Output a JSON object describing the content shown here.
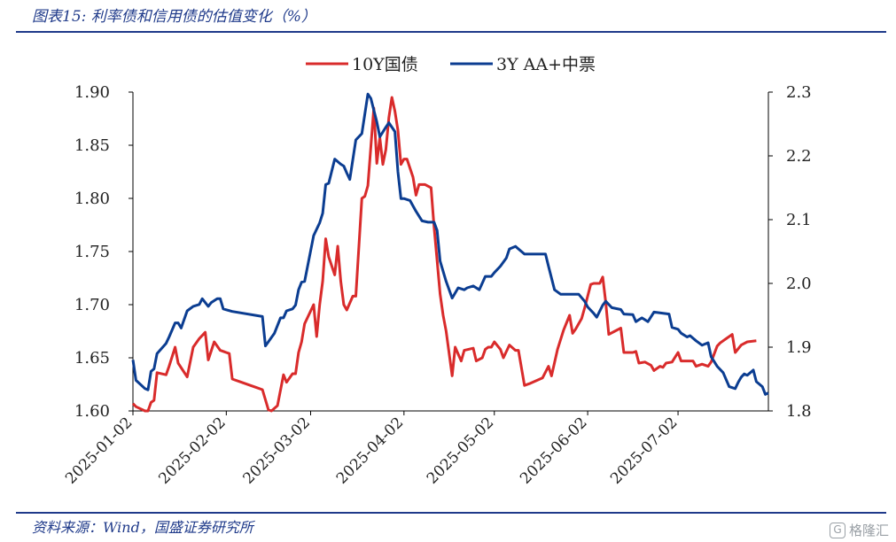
{
  "figure": {
    "title": "图表15: 利率债和信用债的估值变化（%）",
    "source": "资料来源：Wind，国盛证券研究所",
    "watermark": "格隆汇"
  },
  "chart_data": {
    "type": "line",
    "legend_position": "top-center",
    "grid": false,
    "x_ticks": [
      "2025-01-02",
      "2025-02-02",
      "2025-03-02",
      "2025-04-02",
      "2025-05-02",
      "2025-06-02",
      "2025-07-02"
    ],
    "xlim": [
      "2025-01-02",
      "2025-07-28"
    ],
    "y_left": {
      "lim": [
        1.6,
        1.9
      ],
      "ticks": [
        "1.60",
        "1.65",
        "1.70",
        "1.75",
        "1.80",
        "1.85",
        "1.90"
      ]
    },
    "y_right": {
      "lim": [
        1.8,
        2.3
      ],
      "ticks": [
        "1.8",
        "1.9",
        "2.0",
        "2.1",
        "2.2",
        "2.3"
      ]
    },
    "colors": {
      "series1": "#d92b2b",
      "series2": "#0b3d91"
    },
    "series": [
      {
        "name": "10Y国债",
        "axis": "left",
        "points": [
          [
            "2025-01-02",
            1.607
          ],
          [
            "2025-01-03",
            1.604
          ],
          [
            "2025-01-06",
            1.6
          ],
          [
            "2025-01-07",
            1.6
          ],
          [
            "2025-01-08",
            1.608
          ],
          [
            "2025-01-09",
            1.61
          ],
          [
            "2025-01-10",
            1.636
          ],
          [
            "2025-01-13",
            1.634
          ],
          [
            "2025-01-14",
            1.642
          ],
          [
            "2025-01-16",
            1.66
          ],
          [
            "2025-01-17",
            1.645
          ],
          [
            "2025-01-20",
            1.632
          ],
          [
            "2025-01-22",
            1.66
          ],
          [
            "2025-01-24",
            1.668
          ],
          [
            "2025-01-26",
            1.674
          ],
          [
            "2025-01-27",
            1.648
          ],
          [
            "2025-01-29",
            1.665
          ],
          [
            "2025-01-31",
            1.657
          ],
          [
            "2025-02-03",
            1.654
          ],
          [
            "2025-02-04",
            1.63
          ],
          [
            "2025-02-07",
            1.627
          ],
          [
            "2025-02-10",
            1.624
          ],
          [
            "2025-02-12",
            1.622
          ],
          [
            "2025-02-14",
            1.62
          ],
          [
            "2025-02-16",
            1.601
          ],
          [
            "2025-02-17",
            1.6
          ],
          [
            "2025-02-19",
            1.605
          ],
          [
            "2025-02-21",
            1.634
          ],
          [
            "2025-02-22",
            1.627
          ],
          [
            "2025-02-24",
            1.635
          ],
          [
            "2025-02-25",
            1.635
          ],
          [
            "2025-02-26",
            1.655
          ],
          [
            "2025-02-27",
            1.665
          ],
          [
            "2025-02-28",
            1.682
          ],
          [
            "2025-03-03",
            1.7
          ],
          [
            "2025-03-04",
            1.67
          ],
          [
            "2025-03-05",
            1.7
          ],
          [
            "2025-03-06",
            1.722
          ],
          [
            "2025-03-07",
            1.762
          ],
          [
            "2025-03-08",
            1.745
          ],
          [
            "2025-03-10",
            1.728
          ],
          [
            "2025-03-11",
            1.755
          ],
          [
            "2025-03-12",
            1.722
          ],
          [
            "2025-03-13",
            1.7
          ],
          [
            "2025-03-14",
            1.695
          ],
          [
            "2025-03-16",
            1.708
          ],
          [
            "2025-03-17",
            1.708
          ],
          [
            "2025-03-19",
            1.8
          ],
          [
            "2025-03-20",
            1.802
          ],
          [
            "2025-03-21",
            1.812
          ],
          [
            "2025-03-23",
            1.885
          ],
          [
            "2025-03-24",
            1.833
          ],
          [
            "2025-03-25",
            1.857
          ],
          [
            "2025-03-26",
            1.832
          ],
          [
            "2025-03-27",
            1.846
          ],
          [
            "2025-03-28",
            1.876
          ],
          [
            "2025-03-29",
            1.895
          ],
          [
            "2025-03-30",
            1.882
          ],
          [
            "2025-03-31",
            1.864
          ],
          [
            "2025-04-01",
            1.832
          ],
          [
            "2025-04-02",
            1.837
          ],
          [
            "2025-04-03",
            1.837
          ],
          [
            "2025-04-05",
            1.82
          ],
          [
            "2025-04-06",
            1.803
          ],
          [
            "2025-04-07",
            1.813
          ],
          [
            "2025-04-09",
            1.813
          ],
          [
            "2025-04-11",
            1.81
          ],
          [
            "2025-04-12",
            1.773
          ],
          [
            "2025-04-14",
            1.71
          ],
          [
            "2025-04-15",
            1.69
          ],
          [
            "2025-04-16",
            1.675
          ],
          [
            "2025-04-18",
            1.633
          ],
          [
            "2025-04-19",
            1.66
          ],
          [
            "2025-04-21",
            1.647
          ],
          [
            "2025-04-22",
            1.657
          ],
          [
            "2025-04-25",
            1.659
          ],
          [
            "2025-04-26",
            1.647
          ],
          [
            "2025-04-28",
            1.65
          ],
          [
            "2025-04-29",
            1.658
          ],
          [
            "2025-04-30",
            1.66
          ],
          [
            "2025-05-01",
            1.66
          ],
          [
            "2025-05-02",
            1.665
          ],
          [
            "2025-05-04",
            1.658
          ],
          [
            "2025-05-05",
            1.65
          ],
          [
            "2025-05-07",
            1.662
          ],
          [
            "2025-05-09",
            1.657
          ],
          [
            "2025-05-10",
            1.657
          ],
          [
            "2025-05-12",
            1.624
          ],
          [
            "2025-05-14",
            1.626
          ],
          [
            "2025-05-18",
            1.631
          ],
          [
            "2025-05-20",
            1.642
          ],
          [
            "2025-05-21",
            1.633
          ],
          [
            "2025-05-23",
            1.658
          ],
          [
            "2025-05-25",
            1.676
          ],
          [
            "2025-05-27",
            1.69
          ],
          [
            "2025-05-28",
            1.673
          ],
          [
            "2025-05-29",
            1.677
          ],
          [
            "2025-05-31",
            1.687
          ],
          [
            "2025-06-01",
            1.697
          ],
          [
            "2025-06-03",
            1.719
          ],
          [
            "2025-06-04",
            1.72
          ],
          [
            "2025-06-06",
            1.72
          ],
          [
            "2025-06-07",
            1.726
          ],
          [
            "2025-06-08",
            1.702
          ],
          [
            "2025-06-09",
            1.672
          ],
          [
            "2025-06-11",
            1.675
          ],
          [
            "2025-06-13",
            1.678
          ],
          [
            "2025-06-14",
            1.655
          ],
          [
            "2025-06-17",
            1.655
          ],
          [
            "2025-06-18",
            1.656
          ],
          [
            "2025-06-19",
            1.645
          ],
          [
            "2025-06-21",
            1.646
          ],
          [
            "2025-06-23",
            1.643
          ],
          [
            "2025-06-24",
            1.638
          ],
          [
            "2025-06-26",
            1.642
          ],
          [
            "2025-06-27",
            1.641
          ],
          [
            "2025-06-28",
            1.645
          ],
          [
            "2025-06-30",
            1.646
          ],
          [
            "2025-07-02",
            1.655
          ],
          [
            "2025-07-03",
            1.647
          ],
          [
            "2025-07-05",
            1.647
          ],
          [
            "2025-07-07",
            1.647
          ],
          [
            "2025-07-08",
            1.642
          ],
          [
            "2025-07-10",
            1.644
          ],
          [
            "2025-07-12",
            1.642
          ],
          [
            "2025-07-13",
            1.646
          ],
          [
            "2025-07-15",
            1.661
          ],
          [
            "2025-07-16",
            1.664
          ],
          [
            "2025-07-18",
            1.668
          ],
          [
            "2025-07-20",
            1.672
          ],
          [
            "2025-07-21",
            1.655
          ],
          [
            "2025-07-23",
            1.662
          ],
          [
            "2025-07-25",
            1.665
          ],
          [
            "2025-07-28",
            1.666
          ]
        ]
      },
      {
        "name": "3Y AA+中票",
        "axis": "right",
        "points": [
          [
            "2025-01-02",
            1.88
          ],
          [
            "2025-01-03",
            1.848
          ],
          [
            "2025-01-06",
            1.835
          ],
          [
            "2025-01-07",
            1.833
          ],
          [
            "2025-01-08",
            1.862
          ],
          [
            "2025-01-09",
            1.866
          ],
          [
            "2025-01-10",
            1.89
          ],
          [
            "2025-01-13",
            1.906
          ],
          [
            "2025-01-14",
            1.916
          ],
          [
            "2025-01-16",
            1.938
          ],
          [
            "2025-01-17",
            1.938
          ],
          [
            "2025-01-18",
            1.93
          ],
          [
            "2025-01-20",
            1.957
          ],
          [
            "2025-01-22",
            1.964
          ],
          [
            "2025-01-24",
            1.967
          ],
          [
            "2025-01-25",
            1.976
          ],
          [
            "2025-01-27",
            1.964
          ],
          [
            "2025-01-28",
            1.97
          ],
          [
            "2025-01-30",
            1.976
          ],
          [
            "2025-01-31",
            1.976
          ],
          [
            "2025-02-01",
            1.96
          ],
          [
            "2025-02-04",
            1.956
          ],
          [
            "2025-02-14",
            1.948
          ],
          [
            "2025-02-15",
            1.902
          ],
          [
            "2025-02-18",
            1.922
          ],
          [
            "2025-02-20",
            1.946
          ],
          [
            "2025-02-21",
            1.946
          ],
          [
            "2025-02-22",
            1.957
          ],
          [
            "2025-02-24",
            1.96
          ],
          [
            "2025-02-25",
            1.966
          ],
          [
            "2025-02-26",
            1.99
          ],
          [
            "2025-02-27",
            2.002
          ],
          [
            "2025-02-28",
            2.003
          ],
          [
            "2025-03-03",
            2.075
          ],
          [
            "2025-03-05",
            2.095
          ],
          [
            "2025-03-06",
            2.11
          ],
          [
            "2025-03-07",
            2.155
          ],
          [
            "2025-03-08",
            2.157
          ],
          [
            "2025-03-10",
            2.195
          ],
          [
            "2025-03-12",
            2.187
          ],
          [
            "2025-03-13",
            2.184
          ],
          [
            "2025-03-14",
            2.173
          ],
          [
            "2025-03-15",
            2.163
          ],
          [
            "2025-03-17",
            2.225
          ],
          [
            "2025-03-19",
            2.235
          ],
          [
            "2025-03-21",
            2.297
          ],
          [
            "2025-03-22",
            2.29
          ],
          [
            "2025-03-24",
            2.253
          ],
          [
            "2025-03-25",
            2.23
          ],
          [
            "2025-03-27",
            2.245
          ],
          [
            "2025-03-28",
            2.252
          ],
          [
            "2025-03-30",
            2.238
          ],
          [
            "2025-03-31",
            2.175
          ],
          [
            "2025-04-01",
            2.133
          ],
          [
            "2025-04-02",
            2.133
          ],
          [
            "2025-04-04",
            2.13
          ],
          [
            "2025-04-06",
            2.113
          ],
          [
            "2025-04-08",
            2.098
          ],
          [
            "2025-04-10",
            2.096
          ],
          [
            "2025-04-12",
            2.096
          ],
          [
            "2025-04-13",
            2.083
          ],
          [
            "2025-04-14",
            2.035
          ],
          [
            "2025-04-16",
            2.003
          ],
          [
            "2025-04-18",
            1.977
          ],
          [
            "2025-04-20",
            1.993
          ],
          [
            "2025-04-22",
            1.99
          ],
          [
            "2025-04-23",
            1.993
          ],
          [
            "2025-04-25",
            1.996
          ],
          [
            "2025-04-27",
            1.99
          ],
          [
            "2025-04-29",
            2.011
          ],
          [
            "2025-05-01",
            2.011
          ],
          [
            "2025-05-02",
            2.017
          ],
          [
            "2025-05-04",
            2.027
          ],
          [
            "2025-05-06",
            2.04
          ],
          [
            "2025-05-07",
            2.054
          ],
          [
            "2025-05-09",
            2.058
          ],
          [
            "2025-05-10",
            2.054
          ],
          [
            "2025-05-12",
            2.046
          ],
          [
            "2025-05-19",
            2.046
          ],
          [
            "2025-05-20",
            2.027
          ],
          [
            "2025-05-22",
            1.99
          ],
          [
            "2025-05-24",
            1.983
          ],
          [
            "2025-05-30",
            1.983
          ],
          [
            "2025-06-01",
            1.972
          ],
          [
            "2025-06-02",
            1.963
          ],
          [
            "2025-06-04",
            1.953
          ],
          [
            "2025-06-05",
            1.947
          ],
          [
            "2025-06-07",
            1.966
          ],
          [
            "2025-06-08",
            1.972
          ],
          [
            "2025-06-10",
            1.962
          ],
          [
            "2025-06-13",
            1.959
          ],
          [
            "2025-06-14",
            1.952
          ],
          [
            "2025-06-17",
            1.951
          ],
          [
            "2025-06-18",
            1.94
          ],
          [
            "2025-06-20",
            1.946
          ],
          [
            "2025-06-22",
            1.94
          ],
          [
            "2025-06-24",
            1.955
          ],
          [
            "2025-06-29",
            1.952
          ],
          [
            "2025-06-30",
            1.931
          ],
          [
            "2025-07-02",
            1.928
          ],
          [
            "2025-07-03",
            1.922
          ],
          [
            "2025-07-05",
            1.916
          ],
          [
            "2025-07-06",
            1.918
          ],
          [
            "2025-07-08",
            1.91
          ],
          [
            "2025-07-10",
            1.903
          ],
          [
            "2025-07-12",
            1.907
          ],
          [
            "2025-07-13",
            1.885
          ],
          [
            "2025-07-15",
            1.87
          ],
          [
            "2025-07-17",
            1.86
          ],
          [
            "2025-07-19",
            1.838
          ],
          [
            "2025-07-21",
            1.835
          ],
          [
            "2025-07-22",
            1.845
          ],
          [
            "2025-07-23",
            1.853
          ],
          [
            "2025-07-24",
            1.858
          ],
          [
            "2025-07-25",
            1.856
          ],
          [
            "2025-07-26",
            1.86
          ],
          [
            "2025-07-27",
            1.864
          ],
          [
            "2025-07-28",
            1.846
          ],
          [
            "2025-07-30",
            1.838
          ],
          [
            "2025-07-31",
            1.826
          ],
          [
            "2025-08-01",
            1.828
          ]
        ]
      }
    ]
  }
}
